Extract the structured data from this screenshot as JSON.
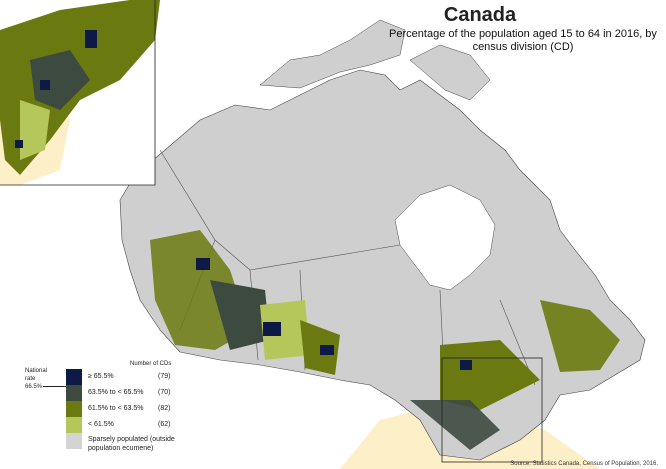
{
  "title": "Canada",
  "subtitle": "Percentage of the population aged 15 to 64 in 2016, by census division (CD)",
  "legend": {
    "national_rate_label": "National rate",
    "national_rate_value": "66.5%",
    "count_header": "Number of CDs",
    "classes": [
      {
        "label": "≥ 65.5%",
        "count": "(79)",
        "color": "#0d1a45"
      },
      {
        "label": "63.5% to < 65.5%",
        "count": "(70)",
        "color": "#3d4a40"
      },
      {
        "label": "61.5% to < 63.5%",
        "count": "(82)",
        "color": "#6b7a10"
      },
      {
        "label": "< 61.5%",
        "count": "(62)",
        "color": "#b5c75a"
      },
      {
        "label": "Sparsely populated (outside population ecumene)",
        "count": "",
        "color": "#d4d4d4"
      }
    ]
  },
  "source": "Source: Statistics Canada, Census of Population, 2016.",
  "colors": {
    "land": "#cfcfcf",
    "water_lakes": "#ffffff",
    "neighbour": "#fdf0c8",
    "border": "#444444"
  }
}
